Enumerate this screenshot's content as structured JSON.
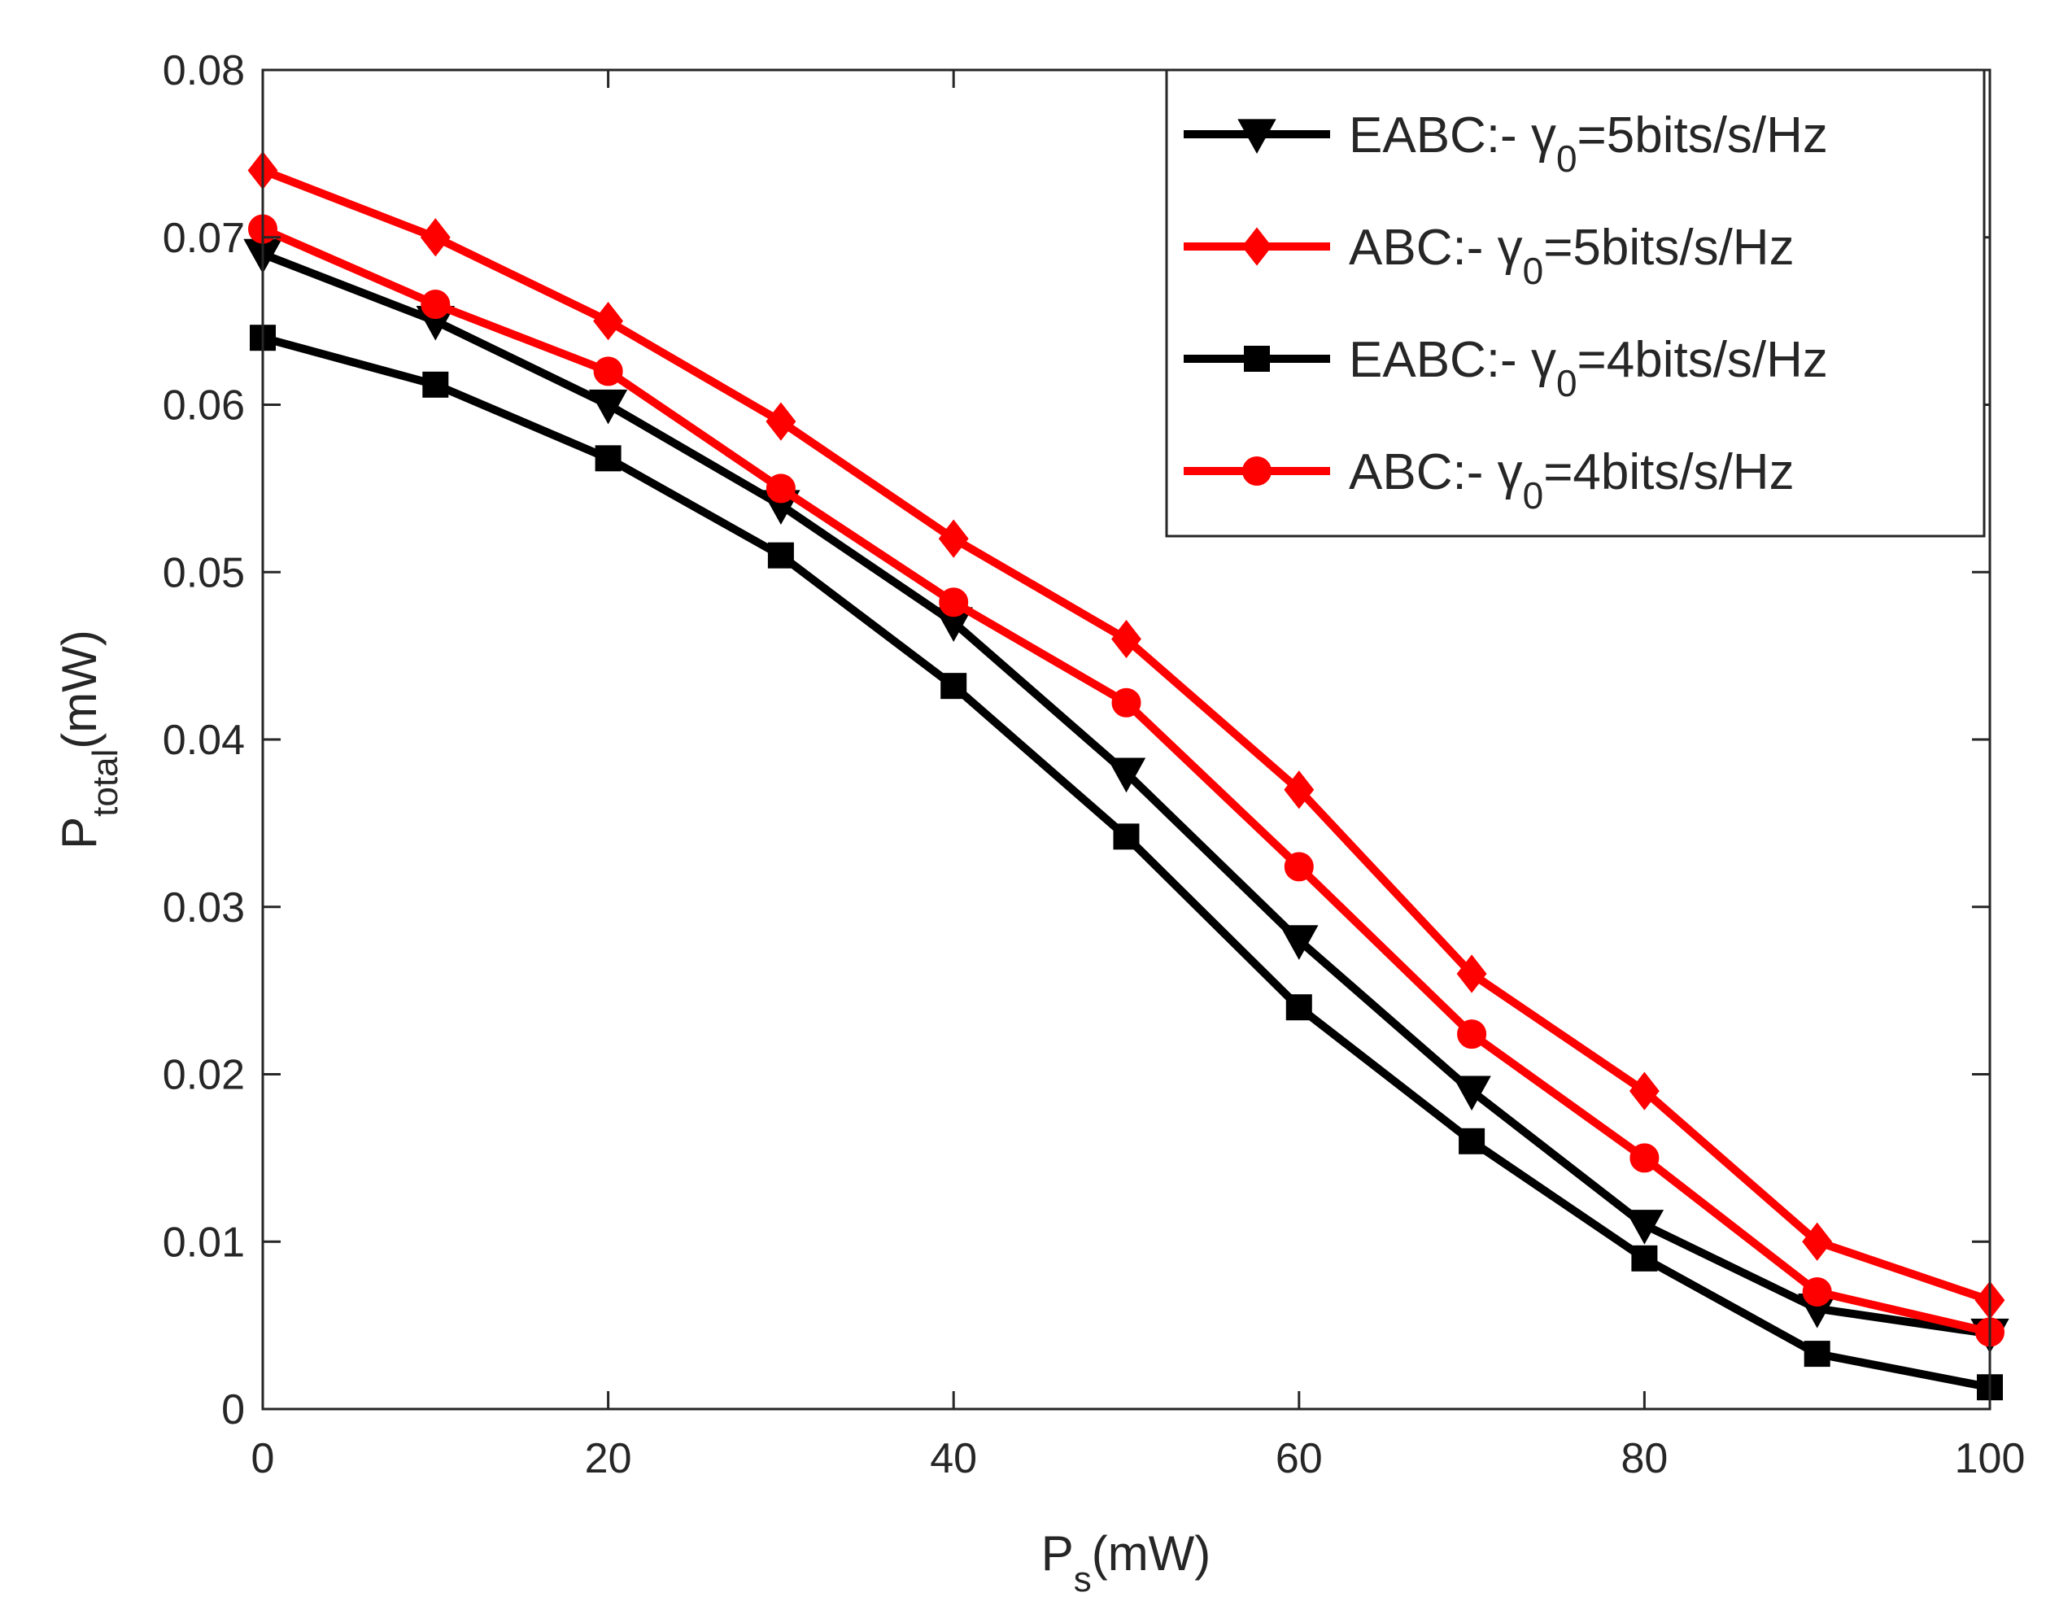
{
  "chart_data": {
    "type": "line",
    "title": "",
    "xlabel": {
      "main": "P",
      "sub": "s",
      "unit": "(mW)"
    },
    "ylabel": {
      "main": "P",
      "sub": "total",
      "unit": "(mW)"
    },
    "xlim": [
      0,
      100
    ],
    "ylim": [
      0,
      0.08
    ],
    "xticks": [
      0,
      20,
      40,
      60,
      80,
      100
    ],
    "xtick_labels": [
      "0",
      "20",
      "40",
      "60",
      "80",
      "100"
    ],
    "yticks": [
      0,
      0.01,
      0.02,
      0.03,
      0.04,
      0.05,
      0.06,
      0.07,
      0.08
    ],
    "ytick_labels": [
      "0",
      "0.01",
      "0.02",
      "0.03",
      "0.04",
      "0.05",
      "0.06",
      "0.07",
      "0.08"
    ],
    "grid": false,
    "legend_position": "top-right",
    "x": [
      0,
      10,
      20,
      30,
      40,
      50,
      60,
      70,
      80,
      90,
      100
    ],
    "series": [
      {
        "name": "EABC:- γ0=5bits/s/Hz",
        "label_prefix": "EABC:- ",
        "symbol": "γ",
        "symbol_sub": "0",
        "label_suffix": "=5bits/s/Hz",
        "color": "#000000",
        "marker": "triangle-down",
        "values": [
          0.069,
          0.065,
          0.06,
          0.054,
          0.047,
          0.038,
          0.028,
          0.019,
          0.011,
          0.006,
          0.0045
        ]
      },
      {
        "name": "ABC:- γ0=5bits/s/Hz",
        "label_prefix": "ABC:-   ",
        "symbol": "γ",
        "symbol_sub": "0",
        "label_suffix": "=5bits/s/Hz",
        "color": "#ff0000",
        "marker": "diamond",
        "values": [
          0.074,
          0.07,
          0.065,
          0.059,
          0.052,
          0.046,
          0.037,
          0.026,
          0.019,
          0.01,
          0.0065
        ]
      },
      {
        "name": "EABC:- γ0=4bits/s/Hz",
        "label_prefix": "EABC:- ",
        "symbol": "γ",
        "symbol_sub": "0",
        "label_suffix": "=4bits/s/Hz",
        "color": "#000000",
        "marker": "square",
        "values": [
          0.064,
          0.0612,
          0.0568,
          0.051,
          0.0432,
          0.0342,
          0.024,
          0.016,
          0.009,
          0.0033,
          0.0013
        ]
      },
      {
        "name": "ABC:- γ0=4bits/s/Hz",
        "label_prefix": "ABC:-   ",
        "symbol": "γ",
        "symbol_sub": "0",
        "label_suffix": "=4bits/s/Hz",
        "color": "#ff0000",
        "marker": "circle",
        "values": [
          0.0705,
          0.066,
          0.062,
          0.055,
          0.0482,
          0.0422,
          0.0324,
          0.0224,
          0.015,
          0.007,
          0.0046
        ]
      }
    ]
  }
}
